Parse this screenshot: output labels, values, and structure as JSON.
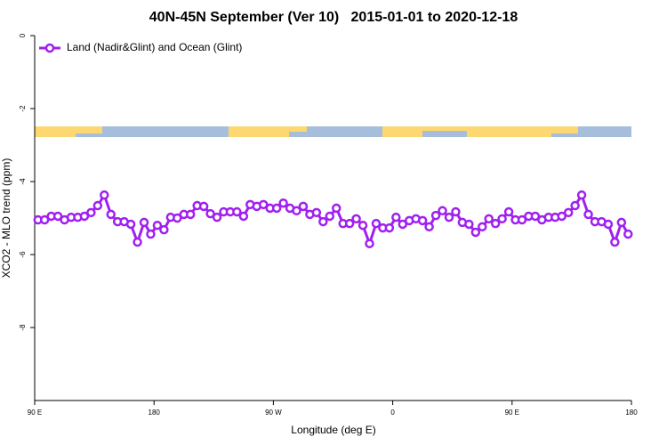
{
  "chart_data": {
    "type": "line",
    "title": "40N-45N September (Ver 10)   2015-01-01 to 2020-12-18",
    "x_label": "Longitude (deg E)",
    "y_label": "XCO2 - MLO trend (ppm)",
    "legend": "top-left",
    "xlim": [
      90,
      540
    ],
    "xticks": [
      {
        "value": 90,
        "label": "90 E"
      },
      180,
      {
        "value": 270,
        "label": "90 W"
      },
      {
        "value": 360,
        "label": "0"
      },
      {
        "value": 450,
        "label": "90 E"
      },
      {
        "value": 540,
        "label": "180"
      }
    ],
    "ylim": [
      -10,
      0
    ],
    "yticks": [
      0,
      -2,
      -4,
      -6,
      -8
    ],
    "x": [
      92.5,
      97.5,
      102.5,
      107.5,
      112.5,
      117.5,
      122.5,
      127.5,
      132.5,
      137.5,
      142.5,
      147.5,
      152.5,
      157.5,
      162.5,
      167.5,
      172.5,
      177.5,
      182.5,
      187.5,
      192.5,
      197.5,
      202.5,
      207.5,
      212.5,
      217.5,
      222.5,
      227.5,
      232.5,
      237.5,
      242.5,
      247.5,
      252.5,
      257.5,
      262.5,
      267.5,
      272.5,
      277.5,
      282.5,
      287.5,
      292.5,
      297.5,
      302.5,
      307.5,
      312.5,
      317.5,
      322.5,
      327.5,
      332.5,
      337.5,
      342.5,
      347.5,
      352.5,
      357.5,
      362.5,
      367.5,
      372.5,
      377.5,
      382.5,
      387.5,
      392.5,
      397.5,
      402.5,
      407.5,
      412.5,
      417.5,
      422.5,
      427.5,
      432.5,
      437.5,
      442.5,
      447.5,
      452.5,
      457.5,
      462.5,
      467.5,
      472.5,
      477.5,
      482.5,
      487.5,
      492.5,
      497.5,
      502.5,
      507.5,
      512.5,
      517.5,
      522.5,
      527.5,
      532.5,
      537.5
    ],
    "series": [
      {
        "name": "Land (Nadir&Glint) and Ocean (Glint)",
        "color": "#a020f0",
        "values": [
          -5.05,
          -5.05,
          -4.95,
          -4.95,
          -5.05,
          -4.98,
          -4.98,
          -4.95,
          -4.85,
          -4.66,
          -4.37,
          -4.9,
          -5.1,
          -5.1,
          -5.17,
          -5.66,
          -5.12,
          -5.44,
          -5.2,
          -5.32,
          -4.98,
          -5.0,
          -4.9,
          -4.9,
          -4.66,
          -4.68,
          -4.88,
          -4.98,
          -4.83,
          -4.83,
          -4.83,
          -4.95,
          -4.63,
          -4.68,
          -4.63,
          -4.73,
          -4.73,
          -4.59,
          -4.73,
          -4.8,
          -4.68,
          -4.9,
          -4.85,
          -5.1,
          -4.95,
          -4.73,
          -5.15,
          -5.15,
          -5.02,
          -5.2,
          -5.7,
          -5.15,
          -5.27,
          -5.27,
          -4.98,
          -5.17,
          -5.07,
          -5.02,
          -5.07,
          -5.24,
          -4.93,
          -4.8,
          -4.98,
          -4.83,
          -5.12,
          -5.17,
          -5.39,
          -5.24,
          -5.02,
          -5.15,
          -5.02,
          -4.83,
          -5.05,
          -5.05,
          -4.95,
          -4.95,
          -5.05,
          -4.98,
          -4.98,
          -4.95,
          -4.85,
          -4.66,
          -4.37,
          -4.9,
          -5.1,
          -5.1,
          -5.17,
          -5.66,
          -5.12,
          -5.44
        ]
      }
    ]
  }
}
